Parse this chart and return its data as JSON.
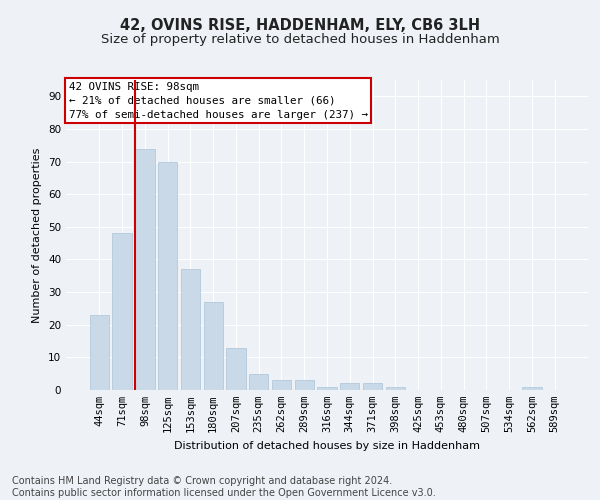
{
  "title": "42, OVINS RISE, HADDENHAM, ELY, CB6 3LH",
  "subtitle": "Size of property relative to detached houses in Haddenham",
  "xlabel": "Distribution of detached houses by size in Haddenham",
  "ylabel": "Number of detached properties",
  "categories": [
    "44sqm",
    "71sqm",
    "98sqm",
    "125sqm",
    "153sqm",
    "180sqm",
    "207sqm",
    "235sqm",
    "262sqm",
    "289sqm",
    "316sqm",
    "344sqm",
    "371sqm",
    "398sqm",
    "425sqm",
    "453sqm",
    "480sqm",
    "507sqm",
    "534sqm",
    "562sqm",
    "589sqm"
  ],
  "values": [
    23,
    48,
    74,
    70,
    37,
    27,
    13,
    5,
    3,
    3,
    1,
    2,
    2,
    1,
    0,
    0,
    0,
    0,
    0,
    1,
    0
  ],
  "bar_color": "#c9d9e8",
  "bar_edgecolor": "#aac4d8",
  "highlight_index": 2,
  "highlight_line_color": "#cc0000",
  "ylim": [
    0,
    95
  ],
  "yticks": [
    0,
    10,
    20,
    30,
    40,
    50,
    60,
    70,
    80,
    90
  ],
  "annotation_box_text": "42 OVINS RISE: 98sqm\n← 21% of detached houses are smaller (66)\n77% of semi-detached houses are larger (237) →",
  "annotation_box_edgecolor": "#cc0000",
  "annotation_box_facecolor": "#ffffff",
  "footer_text": "Contains HM Land Registry data © Crown copyright and database right 2024.\nContains public sector information licensed under the Open Government Licence v3.0.",
  "bg_color": "#eef2f7",
  "grid_color": "#ffffff",
  "title_fontsize": 10.5,
  "subtitle_fontsize": 9.5,
  "footer_fontsize": 7,
  "axis_label_fontsize": 8,
  "tick_fontsize": 7.5,
  "ylabel_fontsize": 8
}
